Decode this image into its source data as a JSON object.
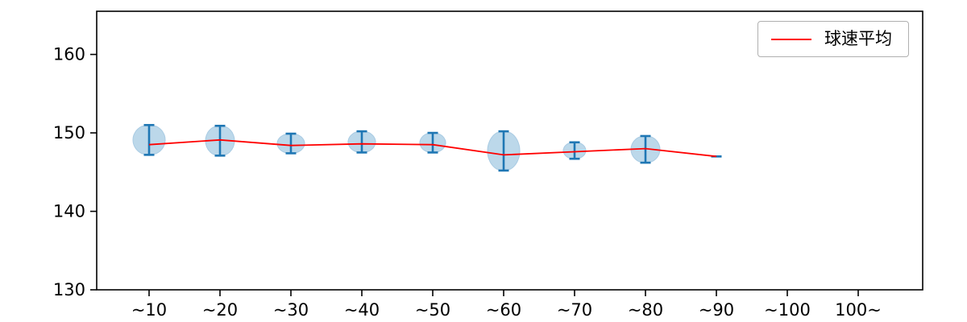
{
  "chart_data": {
    "type": "violin",
    "title": "",
    "xlabel": "",
    "ylabel": "",
    "categories": [
      "~10",
      "~20",
      "~30",
      "~40",
      "~50",
      "~60",
      "~70",
      "~80",
      "~90",
      "~100",
      "100~"
    ],
    "ylim": [
      130,
      165.5
    ],
    "yticks": [
      130,
      140,
      150,
      160
    ],
    "grid": false,
    "legend": {
      "label": "球速平均",
      "position": "upper right",
      "line_color": "#ff0000"
    },
    "colors": {
      "violin_fill": "#bcd8ea",
      "violin_edge": "#a9cbe3",
      "whisker": "#1f77b4",
      "mean_line": "#ff0000",
      "axis": "#000000"
    },
    "violins": [
      {
        "category": "~10",
        "min": 147.2,
        "max": 151.0,
        "mean": 148.5,
        "rel_width": 1.0
      },
      {
        "category": "~20",
        "min": 147.1,
        "max": 150.9,
        "mean": 149.1,
        "rel_width": 0.9
      },
      {
        "category": "~30",
        "min": 147.4,
        "max": 149.9,
        "mean": 148.4,
        "rel_width": 0.85
      },
      {
        "category": "~40",
        "min": 147.5,
        "max": 150.2,
        "mean": 148.6,
        "rel_width": 0.85
      },
      {
        "category": "~50",
        "min": 147.5,
        "max": 150.0,
        "mean": 148.5,
        "rel_width": 0.8
      },
      {
        "category": "~60",
        "min": 145.2,
        "max": 150.2,
        "mean": 147.2,
        "rel_width": 1.0
      },
      {
        "category": "~70",
        "min": 146.7,
        "max": 148.8,
        "mean": 147.6,
        "rel_width": 0.7
      },
      {
        "category": "~80",
        "min": 146.2,
        "max": 149.6,
        "mean": 148.0,
        "rel_width": 0.9
      },
      {
        "category": "~90",
        "min": 147.0,
        "max": 147.0,
        "mean": 147.0,
        "rel_width": 0
      },
      {
        "category": "~100",
        "min": null,
        "max": null,
        "mean": null,
        "rel_width": 0
      },
      {
        "category": "100~",
        "min": null,
        "max": null,
        "mean": null,
        "rel_width": 0
      }
    ],
    "mean_series": {
      "name": "球速平均",
      "values": [
        148.5,
        149.1,
        148.4,
        148.6,
        148.5,
        147.2,
        147.6,
        148.0,
        147.0,
        null,
        null
      ]
    }
  }
}
